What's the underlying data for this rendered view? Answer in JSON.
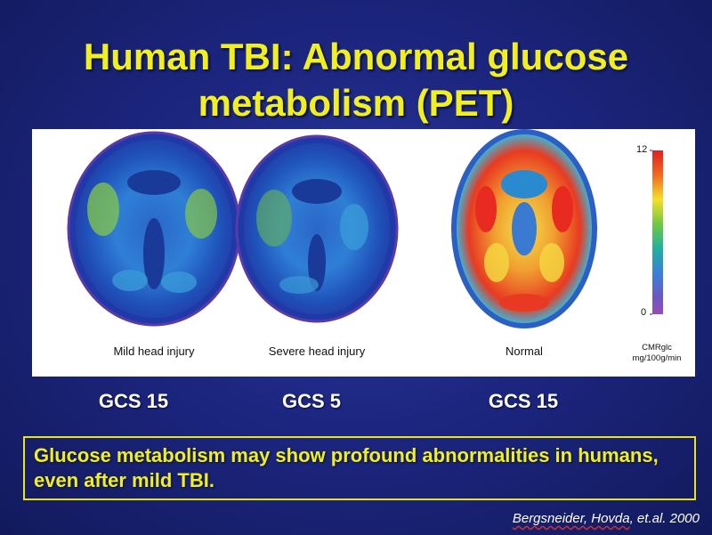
{
  "slide": {
    "title_line1": "Human TBI: Abnormal glucose",
    "title_line2": "metabolism (PET)"
  },
  "figure": {
    "scans": [
      {
        "caption": "Mild head injury",
        "pattern": "low-metabolism"
      },
      {
        "caption": "Severe head injury",
        "pattern": "low-metabolism"
      },
      {
        "caption": "Normal",
        "pattern": "normal-metabolism"
      }
    ],
    "scale": {
      "max_label": "12",
      "min_label": "0",
      "unit_line1": "CMRglc",
      "unit_line2": "mg/100g/min"
    }
  },
  "gcs_labels": [
    "GCS 15",
    "GCS 5",
    "GCS 15"
  ],
  "note": "Glucose metabolism may show profound abnormalities in humans, even after mild TBI.",
  "citation": {
    "authors": "Bergsneider, Hovda",
    "suffix": ", et.al. 2000"
  },
  "colors": {
    "title": "#f2ef1e",
    "background": "#1c2680",
    "border": "#e8e31c"
  }
}
